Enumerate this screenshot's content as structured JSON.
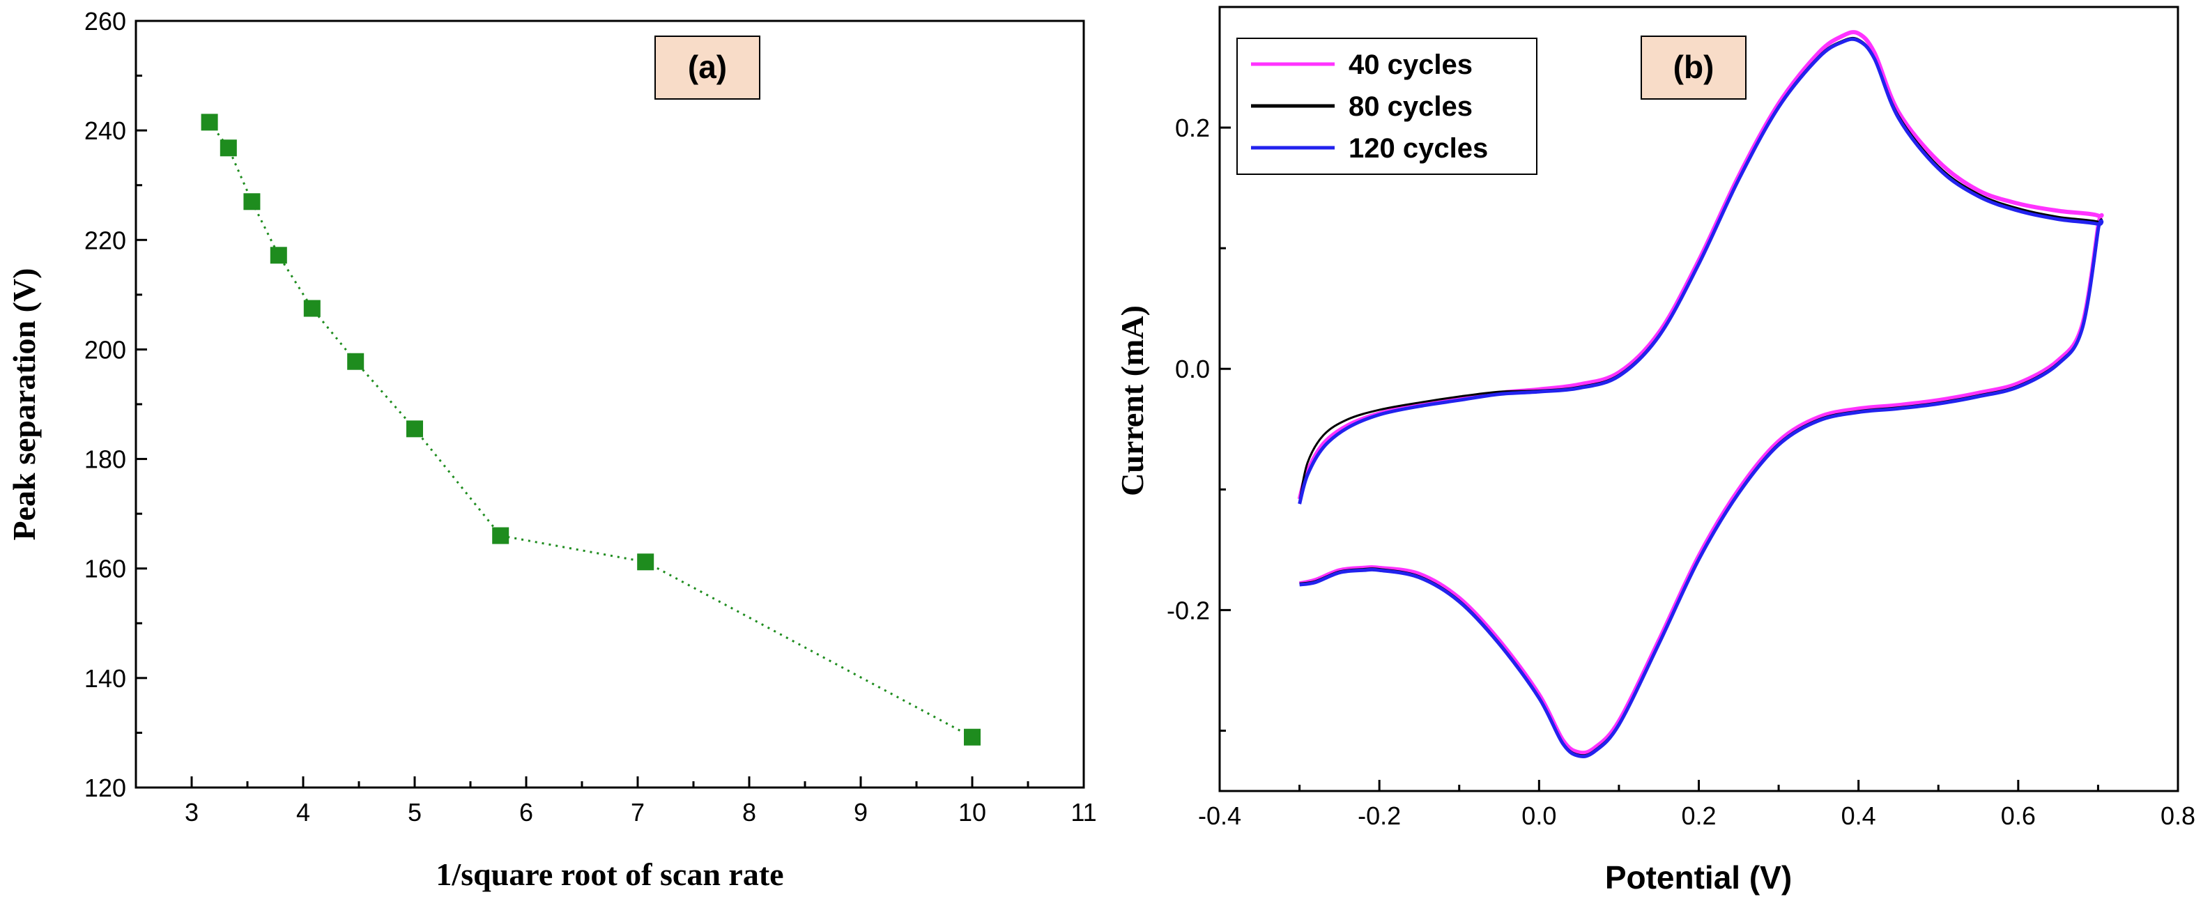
{
  "chart_data": [
    {
      "type": "scatter",
      "panel_label": "(a)",
      "xlabel": "1/square root of scan rate",
      "ylabel": "Peak separation (V)",
      "xlim": [
        2.5,
        11
      ],
      "ylim": [
        120,
        260
      ],
      "xticks": [
        3,
        4,
        5,
        6,
        7,
        8,
        9,
        10,
        11
      ],
      "yticks": [
        120,
        140,
        160,
        180,
        200,
        220,
        240,
        260
      ],
      "x": [
        3.16,
        3.33,
        3.54,
        3.78,
        4.08,
        4.47,
        5.0,
        5.77,
        7.07,
        10.0
      ],
      "y": [
        241.5,
        236.8,
        227.0,
        217.2,
        207.5,
        197.8,
        185.5,
        166.0,
        161.2,
        129.2
      ],
      "marker_color": "#1e8c1e",
      "line_style": "dotted"
    },
    {
      "type": "line",
      "panel_label": "(b)",
      "xlabel": "Potential (V)",
      "ylabel": "Current (mA)",
      "xlim": [
        -0.4,
        0.8
      ],
      "ylim": [
        -0.35,
        0.3
      ],
      "xticks": [
        -0.4,
        -0.2,
        0.0,
        0.2,
        0.4,
        0.6,
        0.8
      ],
      "yticks": [
        -0.2,
        0.0,
        0.2
      ],
      "xtick_labels": [
        "-0.4",
        "-0.2",
        "0.0",
        "0.2",
        "0.4",
        "0.6",
        "0.8"
      ],
      "ytick_labels": [
        "-0.2",
        "0.0",
        "0.2"
      ],
      "legend_position": "top-left",
      "series": [
        {
          "name": "40 cycles",
          "color": "#ff33ff",
          "x": [
            -0.3,
            -0.29,
            -0.27,
            -0.24,
            -0.2,
            -0.15,
            -0.1,
            -0.05,
            0.0,
            0.05,
            0.1,
            0.15,
            0.2,
            0.25,
            0.3,
            0.35,
            0.38,
            0.4,
            0.42,
            0.45,
            0.5,
            0.55,
            0.6,
            0.65,
            0.7,
            0.7,
            0.68,
            0.65,
            0.6,
            0.55,
            0.5,
            0.45,
            0.4,
            0.35,
            0.3,
            0.25,
            0.2,
            0.15,
            0.1,
            0.07,
            0.05,
            0.03,
            0.0,
            -0.05,
            -0.1,
            -0.15,
            -0.2,
            -0.22,
            -0.25,
            -0.28,
            -0.3
          ],
          "y": [
            -0.108,
            -0.085,
            -0.062,
            -0.047,
            -0.037,
            -0.03,
            -0.025,
            -0.02,
            -0.017,
            -0.013,
            -0.003,
            0.03,
            0.09,
            0.16,
            0.22,
            0.262,
            0.276,
            0.278,
            0.262,
            0.213,
            0.172,
            0.148,
            0.137,
            0.131,
            0.127,
            0.118,
            0.036,
            0.007,
            -0.012,
            -0.02,
            -0.026,
            -0.03,
            -0.033,
            -0.04,
            -0.06,
            -0.1,
            -0.155,
            -0.225,
            -0.292,
            -0.314,
            -0.318,
            -0.308,
            -0.27,
            -0.225,
            -0.19,
            -0.17,
            -0.165,
            -0.165,
            -0.167,
            -0.175,
            -0.178
          ]
        },
        {
          "name": "80 cycles",
          "color": "#000000",
          "x": [
            -0.3,
            -0.29,
            -0.27,
            -0.24,
            -0.2,
            -0.15,
            -0.1,
            -0.05,
            0.0,
            0.05,
            0.1,
            0.15,
            0.2,
            0.25,
            0.3,
            0.35,
            0.38,
            0.4,
            0.42,
            0.45,
            0.5,
            0.55,
            0.6,
            0.65,
            0.7,
            0.7,
            0.68,
            0.65,
            0.6,
            0.55,
            0.5,
            0.45,
            0.4,
            0.35,
            0.3,
            0.25,
            0.2,
            0.15,
            0.1,
            0.07,
            0.05,
            0.03,
            0.0,
            -0.05,
            -0.1,
            -0.15,
            -0.2,
            -0.22,
            -0.25,
            -0.28,
            -0.3
          ],
          "y": [
            -0.11,
            -0.078,
            -0.055,
            -0.042,
            -0.034,
            -0.028,
            -0.023,
            -0.019,
            -0.018,
            -0.015,
            -0.005,
            0.028,
            0.088,
            0.158,
            0.218,
            0.259,
            0.272,
            0.273,
            0.258,
            0.21,
            0.168,
            0.145,
            0.133,
            0.126,
            0.122,
            0.116,
            0.034,
            0.005,
            -0.014,
            -0.022,
            -0.028,
            -0.032,
            -0.035,
            -0.042,
            -0.062,
            -0.102,
            -0.157,
            -0.227,
            -0.294,
            -0.316,
            -0.32,
            -0.31,
            -0.272,
            -0.227,
            -0.192,
            -0.172,
            -0.166,
            -0.166,
            -0.168,
            -0.176,
            -0.178
          ]
        },
        {
          "name": "120 cycles",
          "color": "#2222ee",
          "x": [
            -0.3,
            -0.29,
            -0.27,
            -0.24,
            -0.2,
            -0.15,
            -0.1,
            -0.05,
            0.0,
            0.05,
            0.1,
            0.15,
            0.2,
            0.25,
            0.3,
            0.35,
            0.38,
            0.4,
            0.42,
            0.45,
            0.5,
            0.55,
            0.6,
            0.65,
            0.7,
            0.7,
            0.68,
            0.65,
            0.6,
            0.55,
            0.5,
            0.45,
            0.4,
            0.35,
            0.3,
            0.25,
            0.2,
            0.15,
            0.1,
            0.07,
            0.05,
            0.03,
            0.0,
            -0.05,
            -0.1,
            -0.15,
            -0.2,
            -0.22,
            -0.25,
            -0.28,
            -0.3
          ],
          "y": [
            -0.112,
            -0.088,
            -0.065,
            -0.049,
            -0.038,
            -0.031,
            -0.026,
            -0.021,
            -0.019,
            -0.016,
            -0.006,
            0.027,
            0.087,
            0.157,
            0.217,
            0.258,
            0.271,
            0.272,
            0.257,
            0.208,
            0.166,
            0.143,
            0.131,
            0.124,
            0.12,
            0.115,
            0.033,
            0.004,
            -0.015,
            -0.023,
            -0.029,
            -0.033,
            -0.036,
            -0.043,
            -0.063,
            -0.103,
            -0.158,
            -0.228,
            -0.295,
            -0.317,
            -0.321,
            -0.311,
            -0.273,
            -0.228,
            -0.193,
            -0.173,
            -0.167,
            -0.167,
            -0.169,
            -0.177,
            -0.179
          ]
        }
      ]
    }
  ]
}
